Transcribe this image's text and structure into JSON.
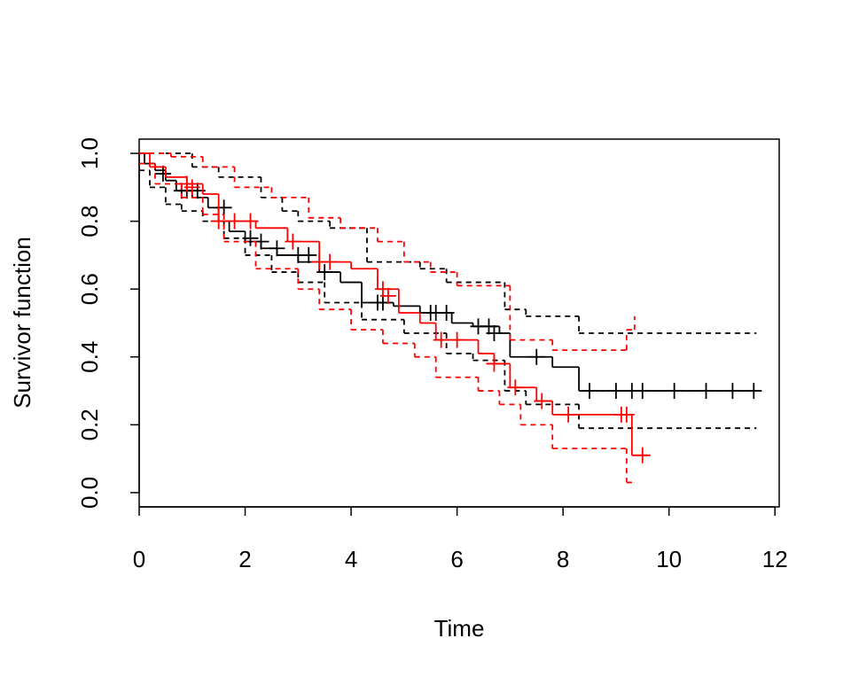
{
  "chart_data": {
    "type": "step",
    "x_label": "Time",
    "y_label": "Survivor function",
    "xlim": [
      0,
      12.08
    ],
    "ylim": [
      -0.042,
      1.042
    ],
    "xticks": [
      0,
      2,
      4,
      6,
      8,
      10,
      12
    ],
    "yticks": [
      {
        "value": 0,
        "label": "0.0"
      },
      0.2,
      0.4,
      0.6,
      0.8,
      {
        "value": 1,
        "label": "1.0"
      }
    ],
    "series": [
      {
        "color": "#000000",
        "dash": false,
        "x": [
          0,
          0.1,
          0.3,
          0.5,
          0.7,
          1.0,
          1.3,
          1.5,
          1.7,
          2.0,
          2.3,
          2.6,
          3.0,
          3.4,
          3.8,
          4.2,
          4.8,
          5.3,
          5.9,
          6.3,
          6.8,
          7.0,
          7.8,
          8.3,
          11.7
        ],
        "values": [
          1.0,
          0.97,
          0.95,
          0.92,
          0.89,
          0.87,
          0.84,
          0.8,
          0.77,
          0.74,
          0.72,
          0.7,
          0.68,
          0.65,
          0.62,
          0.56,
          0.55,
          0.53,
          0.5,
          0.49,
          0.47,
          0.4,
          0.37,
          0.3,
          0.3
        ],
        "censored": {
          "x": [
            0.45,
            0.8,
            0.9,
            1.1,
            1.6,
            2.1,
            2.3,
            2.6,
            3.0,
            3.2,
            3.5,
            4.5,
            4.6,
            5.5,
            5.6,
            5.8,
            6.4,
            6.6,
            6.7,
            7.5,
            8.5,
            9.0,
            9.3,
            9.5,
            10.1,
            10.7,
            11.2,
            11.6
          ],
          "values": [
            0.94,
            0.89,
            0.89,
            0.89,
            0.84,
            0.75,
            0.74,
            0.72,
            0.7,
            0.7,
            0.65,
            0.56,
            0.56,
            0.53,
            0.53,
            0.53,
            0.49,
            0.49,
            0.47,
            0.4,
            0.3,
            0.3,
            0.3,
            0.3,
            0.3,
            0.3,
            0.3,
            0.3
          ]
        }
      },
      {
        "color": "#000000",
        "dash": true,
        "x": [
          0,
          0.5,
          1.0,
          1.5,
          2.3,
          2.7,
          3.0,
          3.6,
          4.3,
          5.3,
          5.8,
          6.9,
          7.3,
          8.3,
          11.65
        ],
        "values": [
          1.0,
          1.0,
          0.96,
          0.93,
          0.87,
          0.83,
          0.8,
          0.78,
          0.68,
          0.66,
          0.62,
          0.54,
          0.52,
          0.47,
          0.47
        ]
      },
      {
        "color": "#000000",
        "dash": true,
        "x": [
          0,
          0.2,
          0.5,
          0.8,
          1.2,
          1.6,
          2.0,
          2.5,
          3.0,
          3.5,
          4.2,
          5.0,
          5.8,
          6.3,
          6.9,
          7.3,
          8.3,
          11.65
        ],
        "values": [
          0.95,
          0.9,
          0.85,
          0.83,
          0.8,
          0.75,
          0.7,
          0.65,
          0.62,
          0.56,
          0.51,
          0.47,
          0.41,
          0.39,
          0.3,
          0.26,
          0.19,
          0.19
        ]
      },
      {
        "color": "#ff0000",
        "dash": false,
        "x": [
          0,
          0.2,
          0.5,
          0.9,
          1.2,
          1.5,
          2.2,
          2.8,
          3.4,
          4.0,
          4.5,
          4.9,
          5.3,
          5.6,
          6.4,
          6.7,
          7.0,
          7.5,
          7.8,
          9.3,
          9.6
        ],
        "values": [
          1.0,
          0.96,
          0.93,
          0.91,
          0.88,
          0.8,
          0.78,
          0.74,
          0.68,
          0.66,
          0.6,
          0.53,
          0.5,
          0.45,
          0.41,
          0.38,
          0.31,
          0.27,
          0.23,
          0.11,
          0.11
        ],
        "censored": {
          "x": [
            0.9,
            1.0,
            1.5,
            1.8,
            2.1,
            2.9,
            3.4,
            3.6,
            4.6,
            4.7,
            5.7,
            6.0,
            6.7,
            7.1,
            7.6,
            8.1,
            9.1,
            9.2,
            9.5
          ],
          "values": [
            0.91,
            0.9,
            0.8,
            0.8,
            0.8,
            0.74,
            0.68,
            0.68,
            0.6,
            0.58,
            0.45,
            0.45,
            0.38,
            0.31,
            0.27,
            0.23,
            0.23,
            0.23,
            0.11
          ]
        }
      },
      {
        "color": "#ff0000",
        "dash": true,
        "x": [
          0,
          0.6,
          1.2,
          1.8,
          2.5,
          3.2,
          3.8,
          4.5,
          5.0,
          5.5,
          6.0,
          7.0,
          7.8,
          9.2,
          9.35
        ],
        "values": [
          1.0,
          0.99,
          0.96,
          0.9,
          0.87,
          0.81,
          0.78,
          0.74,
          0.68,
          0.65,
          0.61,
          0.45,
          0.42,
          0.48,
          0.52
        ]
      },
      {
        "color": "#ff0000",
        "dash": true,
        "x": [
          0,
          0.3,
          0.8,
          1.2,
          1.6,
          2.2,
          3.0,
          3.4,
          4.0,
          4.6,
          5.2,
          5.6,
          6.4,
          6.8,
          7.2,
          7.8,
          9.2,
          9.35
        ],
        "values": [
          0.97,
          0.91,
          0.87,
          0.82,
          0.74,
          0.66,
          0.6,
          0.54,
          0.48,
          0.44,
          0.4,
          0.34,
          0.3,
          0.26,
          0.2,
          0.13,
          0.03,
          0.03
        ]
      }
    ]
  }
}
